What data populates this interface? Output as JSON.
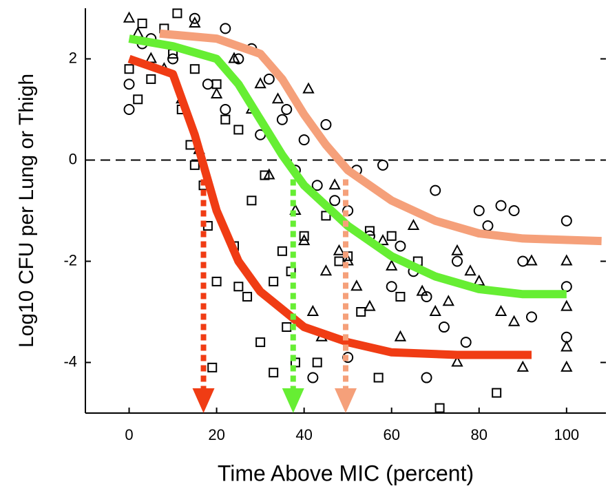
{
  "chart_data": {
    "type": "scatter",
    "xlabel": "Time Above MIC (percent)",
    "ylabel": "Log10 CFU per Lung or Thigh",
    "xlim": [
      -10,
      109
    ],
    "ylim": [
      -5,
      3
    ],
    "xticks": [
      0,
      20,
      40,
      60,
      80,
      100
    ],
    "yticks": [
      -4,
      -2,
      0,
      2
    ],
    "hline": 0,
    "series": [
      {
        "marker": "circle",
        "color": "#000000",
        "x": [
          0,
          0,
          3,
          5,
          10,
          15,
          18,
          22,
          22,
          25,
          28,
          30,
          32,
          35,
          36,
          38,
          40,
          43,
          45,
          47,
          50,
          52,
          55,
          58,
          60,
          62,
          65,
          68,
          70,
          72,
          75,
          80,
          82,
          85,
          88,
          90,
          92,
          100,
          100,
          100,
          50,
          42,
          68,
          77
        ],
        "y": [
          1.0,
          1.5,
          2.3,
          2.4,
          2.0,
          2.8,
          1.5,
          2.6,
          1.0,
          2.0,
          2.2,
          0.5,
          1.6,
          0.8,
          1.0,
          -0.2,
          0.4,
          -0.5,
          0.7,
          -0.8,
          -1.0,
          -0.2,
          -1.5,
          -0.1,
          -2.5,
          -1.7,
          -2.2,
          -2.7,
          -0.6,
          -3.3,
          -2.0,
          -1.0,
          -1.3,
          -0.9,
          -1.0,
          -2.0,
          -3.1,
          -1.2,
          -2.5,
          -3.5,
          -3.9,
          -4.3,
          -4.3,
          -3.6
        ]
      },
      {
        "marker": "triangle",
        "color": "#000000",
        "x": [
          0,
          2,
          5,
          8,
          12,
          15,
          16,
          20,
          24,
          28,
          30,
          32,
          34,
          38,
          40,
          41,
          42,
          45,
          47,
          48,
          50,
          52,
          55,
          58,
          60,
          62,
          65,
          67,
          70,
          73,
          75,
          78,
          80,
          85,
          88,
          92,
          100,
          100,
          100,
          100,
          90,
          75,
          44
        ],
        "y": [
          2.8,
          2.5,
          2.0,
          1.8,
          1.2,
          2.7,
          0.2,
          1.3,
          2.0,
          1.0,
          1.5,
          -0.3,
          1.2,
          -1.0,
          -1.6,
          1.4,
          -3.0,
          -2.2,
          -0.5,
          -1.8,
          -2.0,
          -2.5,
          -2.9,
          -1.6,
          -2.1,
          -3.5,
          -1.3,
          -2.6,
          -3.0,
          -2.8,
          -1.8,
          -2.2,
          -2.4,
          -3.0,
          -3.2,
          -2.0,
          -2.0,
          -2.9,
          -4.1,
          -3.7,
          -4.1,
          -4.0,
          -3.5
        ]
      },
      {
        "marker": "square",
        "color": "#000000",
        "x": [
          0,
          2,
          3,
          5,
          8,
          10,
          11,
          12,
          14,
          15,
          17,
          18,
          20,
          20,
          22,
          24,
          25,
          27,
          28,
          30,
          31,
          33,
          35,
          36,
          37,
          38,
          40,
          43,
          45,
          48,
          50,
          53,
          55,
          57,
          60,
          62,
          66,
          71,
          84,
          19,
          15,
          25,
          33
        ],
        "y": [
          1.8,
          1.2,
          2.7,
          1.6,
          2.6,
          2.1,
          2.9,
          1.0,
          0.3,
          1.8,
          -0.5,
          -1.3,
          1.5,
          -2.4,
          0.8,
          -1.7,
          -2.5,
          -2.7,
          -0.8,
          -3.6,
          -0.3,
          -2.4,
          -1.8,
          -3.3,
          -2.2,
          -4.0,
          -1.5,
          -4.0,
          -1.1,
          -2.0,
          -1.9,
          -3.0,
          -1.4,
          -4.3,
          -1.5,
          -2.7,
          -2.0,
          -4.9,
          -4.6,
          -4.1,
          -0.1,
          0.6,
          -4.2
        ]
      },
      {
        "marker": "line",
        "color": "#f5a07a",
        "x": [
          7,
          20,
          30,
          35,
          40,
          45,
          50,
          60,
          70,
          80,
          90,
          108
        ],
        "y": [
          2.5,
          2.4,
          2.1,
          1.6,
          0.9,
          0.3,
          -0.2,
          -0.8,
          -1.2,
          -1.45,
          -1.55,
          -1.6
        ]
      },
      {
        "marker": "line",
        "color": "#66ee33",
        "x": [
          0,
          10,
          20,
          25,
          30,
          35,
          40,
          45,
          50,
          60,
          70,
          80,
          90,
          100
        ],
        "y": [
          2.4,
          2.25,
          2.0,
          1.5,
          0.8,
          0.1,
          -0.5,
          -0.9,
          -1.3,
          -1.9,
          -2.3,
          -2.55,
          -2.65,
          -2.65
        ]
      },
      {
        "marker": "line",
        "color": "#f03c14",
        "x": [
          0,
          10,
          15,
          20,
          25,
          30,
          40,
          50,
          60,
          75,
          92
        ],
        "y": [
          2.0,
          1.7,
          0.5,
          -1.0,
          -2.0,
          -2.6,
          -3.3,
          -3.6,
          -3.8,
          -3.85,
          -3.85
        ]
      }
    ],
    "thresholds": [
      {
        "x": 17,
        "color": "#f03c14"
      },
      {
        "x": 37.5,
        "color": "#66ee33"
      },
      {
        "x": 49.5,
        "color": "#f5a07a"
      }
    ]
  }
}
